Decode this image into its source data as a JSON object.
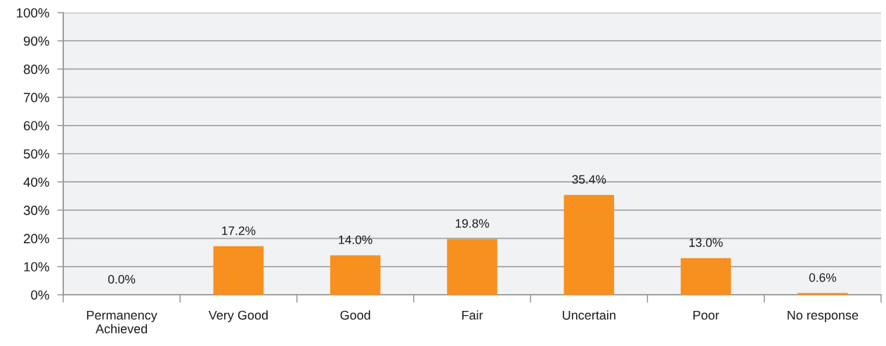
{
  "chart_data": {
    "type": "bar",
    "categories": [
      "Permanency\nAchieved",
      "Very Good",
      "Good",
      "Fair",
      "Uncertain",
      "Poor",
      "No response"
    ],
    "values": [
      0.0,
      17.2,
      14.0,
      19.8,
      35.4,
      13.0,
      0.6
    ],
    "value_labels": [
      "0.0%",
      "17.2%",
      "14.0%",
      "19.8%",
      "35.4%",
      "13.0%",
      "0.6%"
    ],
    "color": "#f7901e",
    "ylim": [
      0,
      100
    ],
    "yticks": [
      {
        "value": 0,
        "label": "0%"
      },
      {
        "value": 10,
        "label": "10%"
      },
      {
        "value": 20,
        "label": "20%"
      },
      {
        "value": 30,
        "label": "30%"
      },
      {
        "value": 40,
        "label": "40%"
      },
      {
        "value": 50,
        "label": "50%"
      },
      {
        "value": 60,
        "label": "60%"
      },
      {
        "value": 70,
        "label": "70%"
      },
      {
        "value": 80,
        "label": "80%"
      },
      {
        "value": 90,
        "label": "90%"
      },
      {
        "value": 100,
        "label": "100%"
      }
    ],
    "grid": "y"
  }
}
